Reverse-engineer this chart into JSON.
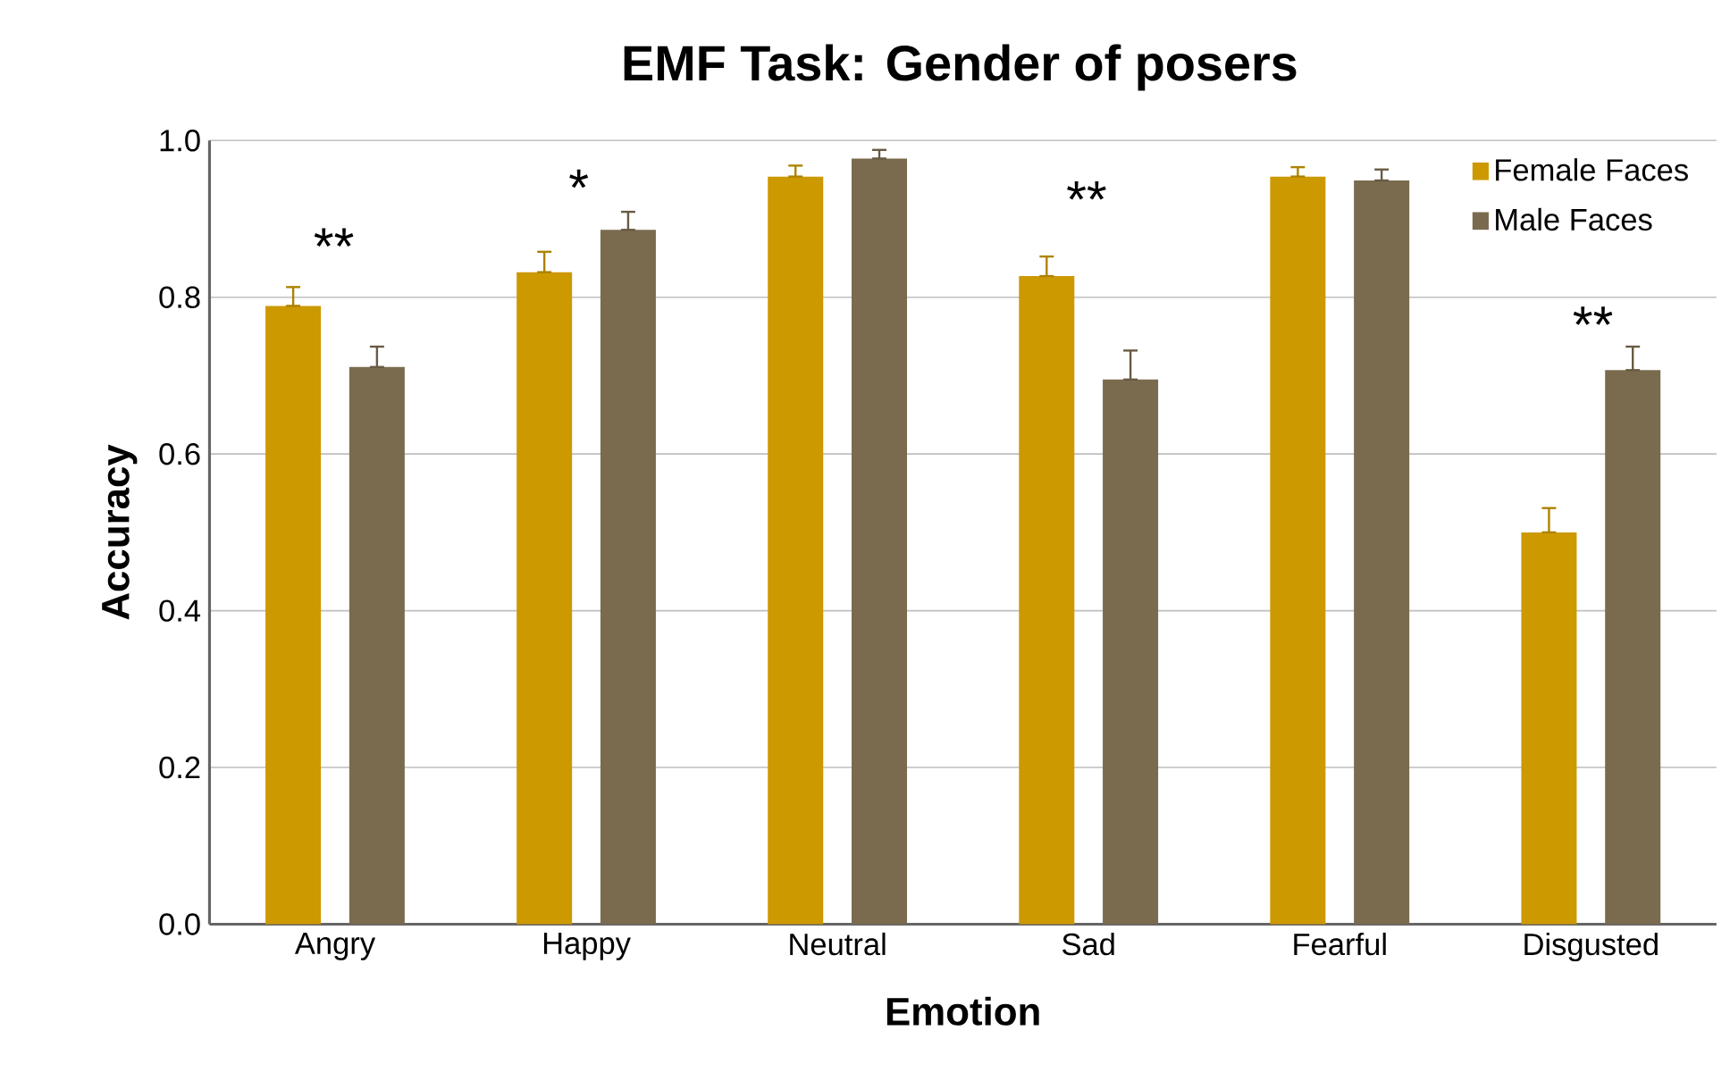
{
  "chart_data": {
    "type": "bar",
    "title": "EMF Task: Gender of posers",
    "xlabel": "Emotion",
    "ylabel": "Accuracy",
    "categories": [
      "Angry",
      "Happy",
      "Neutral",
      "Sad",
      "Fearful",
      "Disgusted"
    ],
    "series": [
      {
        "name": "Female Faces",
        "color": "#cc9900",
        "values": [
          0.789,
          0.832,
          0.954,
          0.827,
          0.954,
          0.5
        ],
        "errors": [
          [
            0.789,
            0.813
          ],
          [
            0.832,
            0.858
          ],
          [
            0.954,
            0.968
          ],
          [
            0.827,
            0.852
          ],
          [
            0.954,
            0.966
          ],
          [
            0.5,
            0.531
          ]
        ]
      },
      {
        "name": "Male Faces",
        "color": "#7a6b4f",
        "values": [
          0.711,
          0.886,
          0.977,
          0.695,
          0.949,
          0.707
        ],
        "errors": [
          [
            0.711,
            0.737
          ],
          [
            0.886,
            0.909
          ],
          [
            0.977,
            0.988
          ],
          [
            0.695,
            0.732
          ],
          [
            0.949,
            0.963
          ],
          [
            0.707,
            0.737
          ]
        ]
      }
    ],
    "ylim": [
      0,
      1.0
    ],
    "yticks": [
      {
        "value": 0,
        "label": "0.0"
      },
      0.2,
      0.4,
      0.6,
      0.8,
      {
        "value": 1.0,
        "label": "1.0"
      }
    ],
    "grid": "y",
    "legend": "top right",
    "annotations": [
      "**",
      "*",
      "**",
      "**"
    ]
  }
}
